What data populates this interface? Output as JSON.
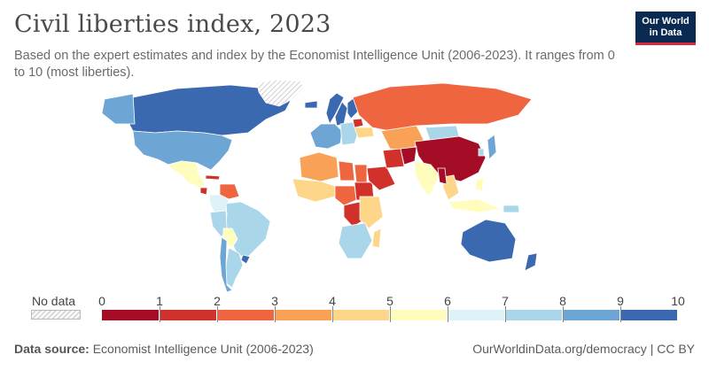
{
  "header": {
    "title": "Civil liberties index, 2023",
    "subtitle": "Based on the expert estimates and index by the Economist Intelligence Unit (2006-2023). It ranges from 0 to 10 (most liberties).",
    "logo_line1": "Our World",
    "logo_line2": "in Data"
  },
  "legend": {
    "no_data_label": "No data",
    "ticks": [
      "0",
      "1",
      "2",
      "3",
      "4",
      "5",
      "6",
      "7",
      "8",
      "9",
      "10"
    ],
    "colors": [
      "#a50d26",
      "#d0312b",
      "#ee6540",
      "#f9a157",
      "#fdd68a",
      "#fefdbd",
      "#dff2f7",
      "#a9d6e8",
      "#6da6d4",
      "#3b69b0"
    ]
  },
  "footer": {
    "source_label": "Data source:",
    "source_text": "Economist Intelligence Unit (2006-2023)",
    "url_text": "OurWorldinData.org/democracy | CC BY"
  },
  "map_data": {
    "type": "choropleth",
    "metric": "civil liberties index",
    "year": 2023,
    "scale": [
      0,
      10
    ],
    "no_data_color": "#e0e0e0",
    "regions": [
      {
        "name": "Canada",
        "band": 9
      },
      {
        "name": "Alaska (US)",
        "band": 8
      },
      {
        "name": "United States",
        "band": 8
      },
      {
        "name": "Greenland",
        "band": null
      },
      {
        "name": "Mexico",
        "band": 5
      },
      {
        "name": "Cuba",
        "band": 1
      },
      {
        "name": "Nicaragua",
        "band": 1
      },
      {
        "name": "Venezuela",
        "band": 2
      },
      {
        "name": "Colombia",
        "band": 6
      },
      {
        "name": "Brazil",
        "band": 7
      },
      {
        "name": "Peru",
        "band": 7
      },
      {
        "name": "Bolivia",
        "band": 5
      },
      {
        "name": "Argentina",
        "band": 7
      },
      {
        "name": "Chile",
        "band": 8
      },
      {
        "name": "Uruguay",
        "band": 9
      },
      {
        "name": "Iceland",
        "band": 9
      },
      {
        "name": "Norway",
        "band": 9
      },
      {
        "name": "Sweden",
        "band": 9
      },
      {
        "name": "Finland",
        "band": 9
      },
      {
        "name": "Western Europe",
        "band": 8
      },
      {
        "name": "Eastern Europe",
        "band": 7
      },
      {
        "name": "Belarus",
        "band": 1
      },
      {
        "name": "Ukraine",
        "band": 4
      },
      {
        "name": "Russia",
        "band": 2
      },
      {
        "name": "Kazakhstan",
        "band": 3
      },
      {
        "name": "Mongolia",
        "band": 7
      },
      {
        "name": "China",
        "band": 0
      },
      {
        "name": "North Africa",
        "band": 3
      },
      {
        "name": "Libya",
        "band": 2
      },
      {
        "name": "Egypt",
        "band": 2
      },
      {
        "name": "Sudan",
        "band": 1
      },
      {
        "name": "West Africa",
        "band": 4
      },
      {
        "name": "Central Africa",
        "band": 2
      },
      {
        "name": "DR Congo",
        "band": 1
      },
      {
        "name": "East Africa",
        "band": 4
      },
      {
        "name": "Southern Africa",
        "band": 7
      },
      {
        "name": "Madagascar",
        "band": 4
      },
      {
        "name": "Saudi Arabia",
        "band": 1
      },
      {
        "name": "Iran",
        "band": 1
      },
      {
        "name": "Afghanistan",
        "band": 0
      },
      {
        "name": "India",
        "band": 5
      },
      {
        "name": "Southeast Asia",
        "band": 4
      },
      {
        "name": "Myanmar",
        "band": 0
      },
      {
        "name": "Indonesia",
        "band": 5
      },
      {
        "name": "Philippines",
        "band": 5
      },
      {
        "name": "Japan",
        "band": 8
      },
      {
        "name": "South Korea",
        "band": 7
      },
      {
        "name": "Papua New Guinea",
        "band": 7
      },
      {
        "name": "Australia",
        "band": 9
      },
      {
        "name": "New Zealand",
        "band": 9
      }
    ]
  }
}
